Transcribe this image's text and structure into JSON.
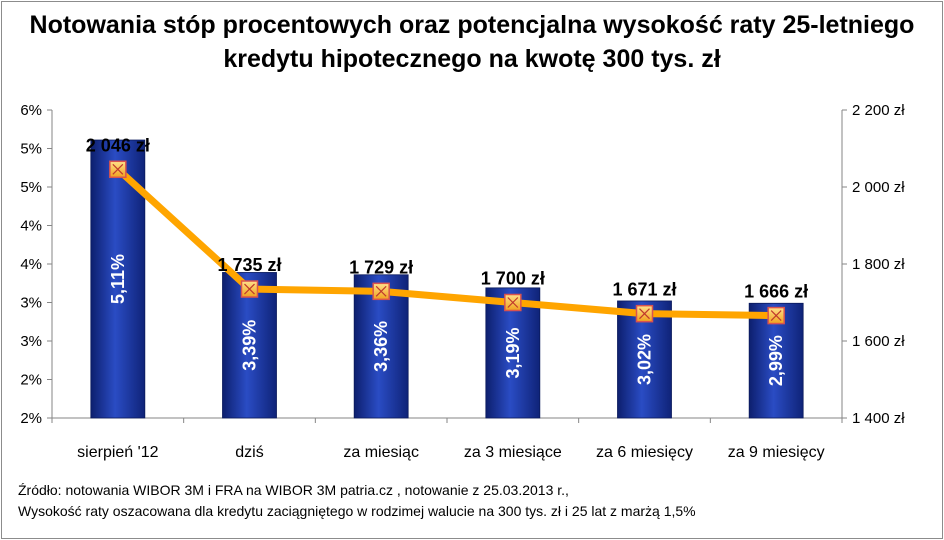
{
  "chart_data": {
    "type": "bar",
    "title_lines": [
      "Notowania stóp procentowych oraz potencjalna wysokość raty 25-letniego",
      "kredytu hipotecznego na kwotę 300 tys. zł"
    ],
    "categories": [
      "sierpień '12",
      "dziś",
      "za miesiąc",
      "za 3 miesiące",
      "za 6 miesięcy",
      "za 9 miesięcy"
    ],
    "series": [
      {
        "kind": "bar",
        "axis": "left",
        "values": [
          5.11,
          3.39,
          3.36,
          3.19,
          3.02,
          2.99
        ],
        "labels": [
          "5,11%",
          "3,39%",
          "3,36%",
          "3,19%",
          "3,02%",
          "2,99%"
        ],
        "color": "#1f3a9e"
      },
      {
        "kind": "line",
        "axis": "right",
        "values": [
          2046,
          1735,
          1729,
          1700,
          1671,
          1666
        ],
        "labels": [
          "2 046 zł",
          "1 735 zł",
          "1 729 zł",
          "1 700 zł",
          "1 671 zł",
          "1 666 zł"
        ],
        "color": "#ffa500",
        "marker_color": "#f4b942",
        "marker_border": "#d9534f"
      }
    ],
    "left_axis": {
      "min": 1.5,
      "max": 5.5,
      "ticks": [
        1.5,
        2,
        2.5,
        3,
        3.5,
        4,
        4.5,
        5,
        5.5
      ],
      "tick_labels": [
        "2%",
        "2%",
        "3%",
        "3%",
        "4%",
        "4%",
        "5%",
        "5%",
        "6%"
      ]
    },
    "right_axis": {
      "min": 1400,
      "max": 2200,
      "ticks": [
        1400,
        1600,
        1800,
        2000,
        2200
      ],
      "tick_labels": [
        "1 400 zł",
        "1 600 zł",
        "1 800 zł",
        "2 000 zł",
        "2 200 zł"
      ]
    },
    "grid": false,
    "legend": "none"
  },
  "footnote": {
    "line1": "Źródło: notowania WIBOR 3M i FRA na WIBOR 3M patria.cz , notowanie z 25.03.2013 r.,",
    "line2": "Wysokość raty oszacowana dla kredytu zaciągniętego w rodzimej walucie na 300 tys. zł i 25 lat z marżą 1,5%"
  }
}
